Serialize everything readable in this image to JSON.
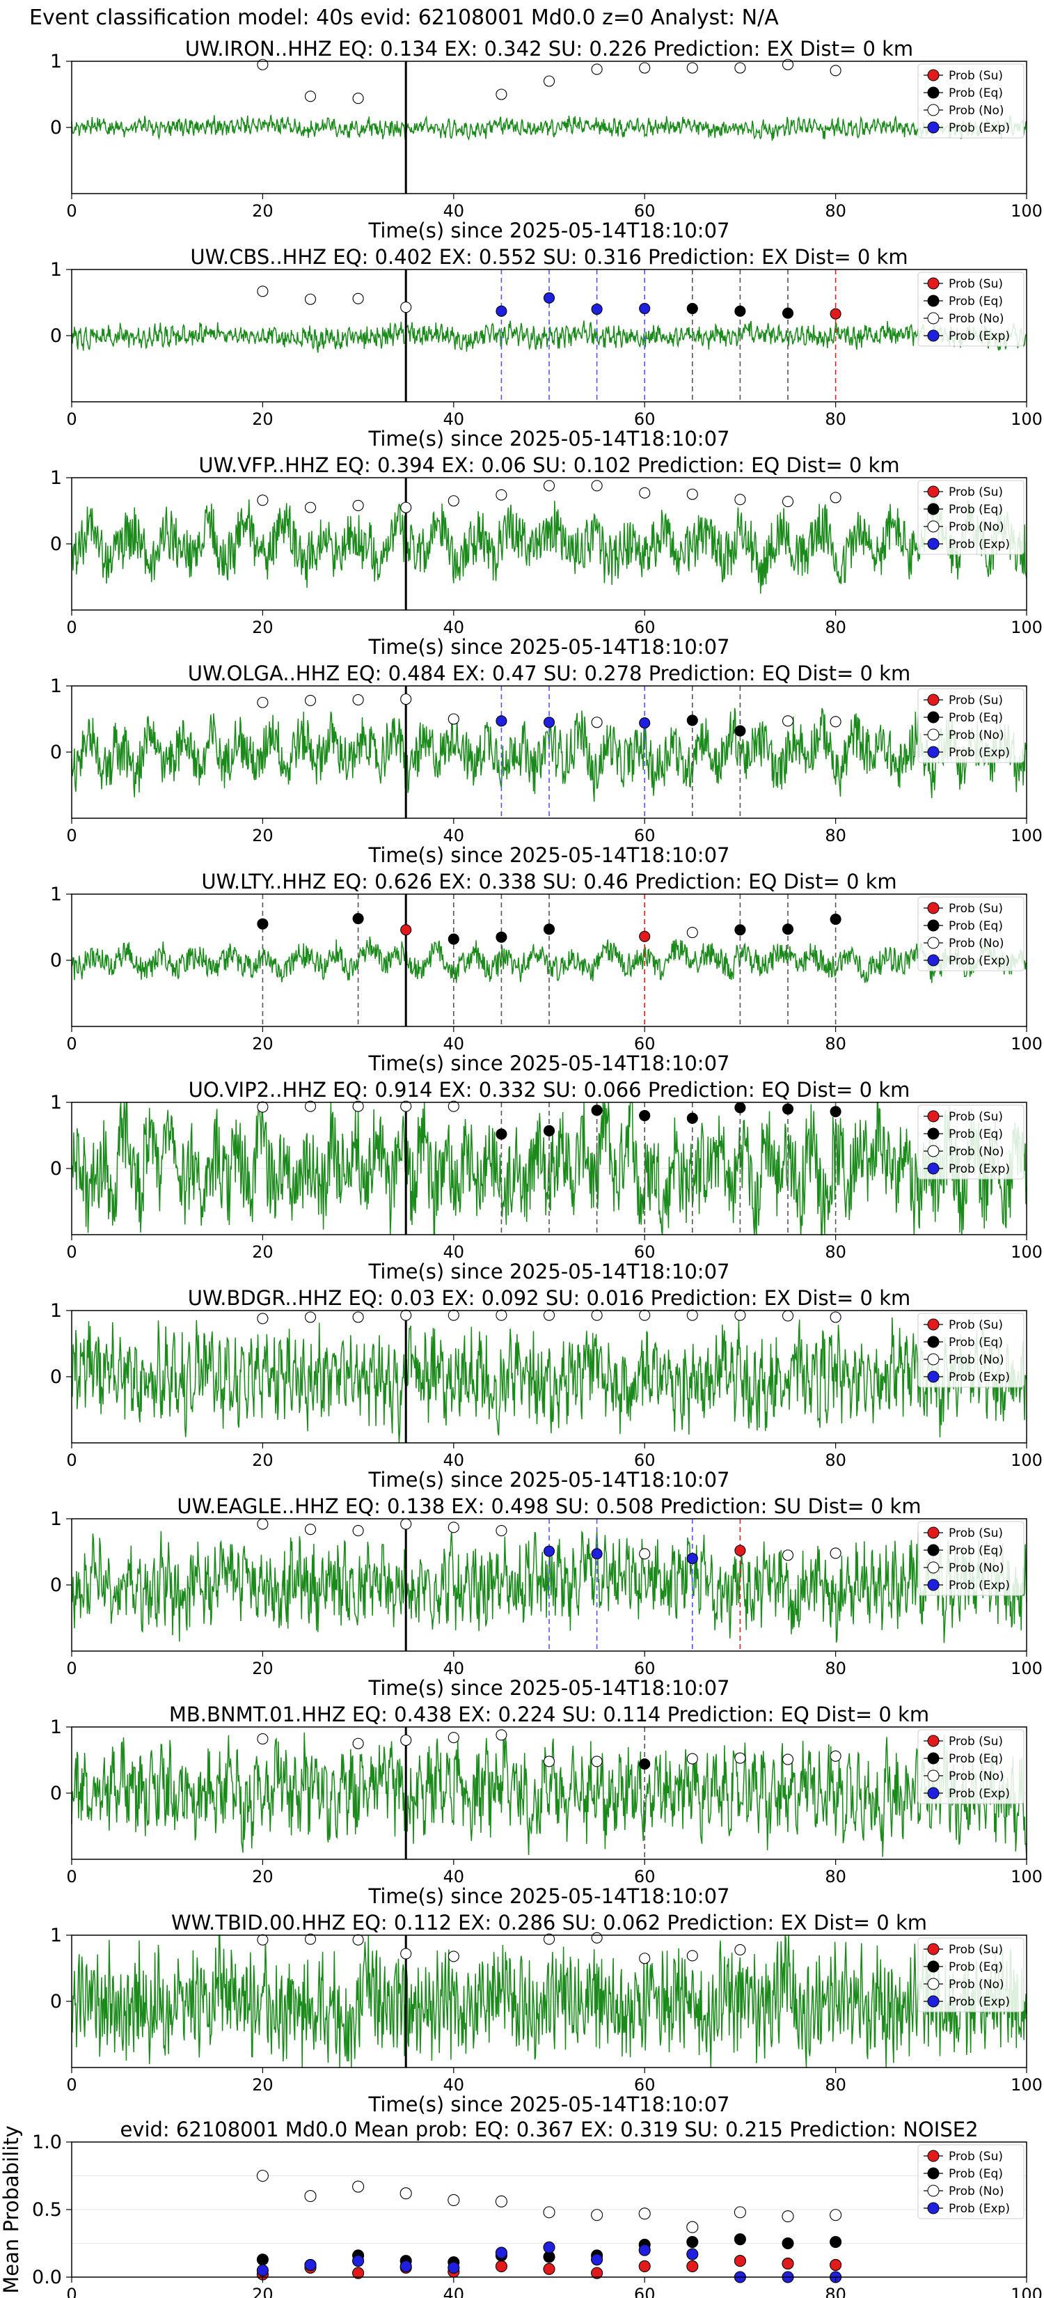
{
  "figure_title": "Event classification model: 40s evid: 62108001 Md0.0 z=0 Analyst: N/A",
  "legend": [
    {
      "label": "Prob (Su)",
      "fill": "#e31a1c"
    },
    {
      "label": "Prob (Eq)",
      "fill": "#000000"
    },
    {
      "label": "Prob (No)",
      "fill": "#ffffff"
    },
    {
      "label": "Prob (Exp)",
      "fill": "#1f1fe0"
    }
  ],
  "colors": {
    "trace": "#1a8a1a",
    "pick_line": "#000000",
    "su": "#e31a1c",
    "eq": "#000000",
    "no": "#ffffff",
    "exp": "#1f1fe0"
  },
  "chart_data": [
    {
      "type": "line",
      "title": "UW.IRON..HHZ   EQ: 0.134  EX: 0.342  SU: 0.226   Prediction: EX    Dist= 0 km",
      "xlabel": "Time(s) since 2025-05-14T18:10:07",
      "xlim": [
        0,
        100
      ],
      "ylim": [
        -1,
        1
      ],
      "xticks": [
        0,
        20,
        40,
        60,
        80,
        100
      ],
      "yticks": [
        0,
        1
      ],
      "pick_time": 35,
      "noise": 0.12,
      "period": 3,
      "seed": 3,
      "points": [
        [
          20,
          "no",
          0.95
        ],
        [
          25,
          "no",
          0.47
        ],
        [
          30,
          "no",
          0.44
        ],
        [
          45,
          "no",
          0.5
        ],
        [
          50,
          "no",
          0.7
        ],
        [
          55,
          "no",
          0.88
        ],
        [
          60,
          "no",
          0.9
        ],
        [
          65,
          "no",
          0.9
        ],
        [
          70,
          "no",
          0.9
        ],
        [
          75,
          "no",
          0.95
        ],
        [
          80,
          "no",
          0.86
        ]
      ]
    },
    {
      "type": "line",
      "title": "UW.CBS..HHZ   EQ: 0.402  EX: 0.552  SU: 0.316   Prediction: EX    Dist= 0 km",
      "xlabel": "Time(s) since 2025-05-14T18:10:07",
      "xlim": [
        0,
        100
      ],
      "ylim": [
        -1,
        1
      ],
      "xticks": [
        0,
        20,
        40,
        60,
        80,
        100
      ],
      "yticks": [
        0,
        1
      ],
      "pick_time": 35,
      "noise": 0.15,
      "period": 3,
      "seed": 11,
      "points": [
        [
          20,
          "no",
          0.67
        ],
        [
          25,
          "no",
          0.55
        ],
        [
          30,
          "no",
          0.56
        ],
        [
          35,
          "no",
          0.43
        ],
        [
          45,
          "exp",
          0.37
        ],
        [
          50,
          "exp",
          0.57
        ],
        [
          55,
          "exp",
          0.4
        ],
        [
          60,
          "exp",
          0.41
        ],
        [
          65,
          "eq",
          0.41
        ],
        [
          70,
          "eq",
          0.37
        ],
        [
          75,
          "eq",
          0.34
        ],
        [
          80,
          "su",
          0.33
        ]
      ]
    },
    {
      "type": "line",
      "title": "UW.VFP..HHZ   EQ: 0.394  EX: 0.06  SU: 0.102   Prediction: EQ    Dist= 0 km",
      "xlabel": "Time(s) since 2025-05-14T18:10:07",
      "xlim": [
        0,
        100
      ],
      "ylim": [
        -1,
        1
      ],
      "xticks": [
        0,
        20,
        40,
        60,
        80,
        100
      ],
      "yticks": [
        0,
        1
      ],
      "pick_time": 35,
      "noise": 0.45,
      "period": 20,
      "seed": 17,
      "points": [
        [
          20,
          "no",
          0.66
        ],
        [
          25,
          "no",
          0.55
        ],
        [
          30,
          "no",
          0.58
        ],
        [
          35,
          "no",
          0.55
        ],
        [
          40,
          "no",
          0.65
        ],
        [
          45,
          "no",
          0.74
        ],
        [
          50,
          "no",
          0.88
        ],
        [
          55,
          "no",
          0.88
        ],
        [
          60,
          "no",
          0.77
        ],
        [
          65,
          "no",
          0.75
        ],
        [
          70,
          "no",
          0.67
        ],
        [
          75,
          "no",
          0.64
        ],
        [
          80,
          "no",
          0.7
        ]
      ]
    },
    {
      "type": "line",
      "title": "UW.OLGA..HHZ   EQ: 0.484  EX: 0.47  SU: 0.278   Prediction: EQ    Dist= 0 km",
      "xlabel": "Time(s) since 2025-05-14T18:10:07",
      "xlim": [
        0,
        100
      ],
      "ylim": [
        -1,
        1
      ],
      "xticks": [
        0,
        20,
        40,
        60,
        80,
        100
      ],
      "yticks": [
        0,
        1
      ],
      "pick_time": 35,
      "noise": 0.45,
      "period": 16,
      "seed": 23,
      "points": [
        [
          20,
          "no",
          0.75
        ],
        [
          25,
          "no",
          0.78
        ],
        [
          30,
          "no",
          0.79
        ],
        [
          35,
          "no",
          0.8
        ],
        [
          40,
          "no",
          0.5
        ],
        [
          45,
          "exp",
          0.47
        ],
        [
          50,
          "exp",
          0.45
        ],
        [
          55,
          "no",
          0.45
        ],
        [
          60,
          "exp",
          0.44
        ],
        [
          65,
          "eq",
          0.48
        ],
        [
          70,
          "eq",
          0.32
        ],
        [
          75,
          "no",
          0.47
        ],
        [
          80,
          "no",
          0.46
        ]
      ]
    },
    {
      "type": "line",
      "title": "UW.LTY..HHZ   EQ: 0.626  EX: 0.338  SU: 0.46   Prediction: EQ    Dist= 0 km",
      "xlabel": "Time(s) since 2025-05-14T18:10:07",
      "xlim": [
        0,
        100
      ],
      "ylim": [
        -1,
        1
      ],
      "xticks": [
        0,
        20,
        40,
        60,
        80,
        100
      ],
      "yticks": [
        0,
        1
      ],
      "pick_time": 35,
      "noise": 0.22,
      "period": 18,
      "seed": 29,
      "points": [
        [
          20,
          "eq",
          0.55
        ],
        [
          30,
          "eq",
          0.63
        ],
        [
          35,
          "su",
          0.46
        ],
        [
          40,
          "eq",
          0.32
        ],
        [
          45,
          "eq",
          0.35
        ],
        [
          50,
          "eq",
          0.47
        ],
        [
          60,
          "su",
          0.36
        ],
        [
          65,
          "no",
          0.42
        ],
        [
          70,
          "eq",
          0.46
        ],
        [
          75,
          "eq",
          0.47
        ],
        [
          80,
          "eq",
          0.62
        ]
      ]
    },
    {
      "type": "line",
      "title": "UO.VIP2..HHZ   EQ: 0.914  EX: 0.332  SU: 0.066   Prediction: EQ    Dist= 0 km",
      "xlabel": "Time(s) since 2025-05-14T18:10:07",
      "xlim": [
        0,
        100
      ],
      "ylim": [
        -1,
        1
      ],
      "xticks": [
        0,
        20,
        40,
        60,
        80,
        100
      ],
      "yticks": [
        0,
        1
      ],
      "pick_time": 35,
      "noise": 0.75,
      "period": 12,
      "seed": 31,
      "points": [
        [
          20,
          "no",
          0.93
        ],
        [
          25,
          "no",
          0.94
        ],
        [
          30,
          "no",
          0.94
        ],
        [
          35,
          "no",
          0.94
        ],
        [
          40,
          "no",
          0.94
        ],
        [
          45,
          "eq",
          0.52
        ],
        [
          50,
          "eq",
          0.57
        ],
        [
          55,
          "eq",
          0.88
        ],
        [
          60,
          "eq",
          0.8
        ],
        [
          65,
          "eq",
          0.76
        ],
        [
          70,
          "eq",
          0.92
        ],
        [
          75,
          "eq",
          0.9
        ],
        [
          80,
          "eq",
          0.86
        ]
      ]
    },
    {
      "type": "line",
      "title": "UW.BDGR..HHZ   EQ: 0.03  EX: 0.092  SU: 0.016   Prediction: EX    Dist= 0 km",
      "xlabel": "Time(s) since 2025-05-14T18:10:07",
      "xlim": [
        0,
        100
      ],
      "ylim": [
        -1,
        1
      ],
      "xticks": [
        0,
        20,
        40,
        60,
        80,
        100
      ],
      "yticks": [
        0,
        1
      ],
      "pick_time": 35,
      "noise": 0.6,
      "period": 4,
      "seed": 37,
      "points": [
        [
          20,
          "no",
          0.88
        ],
        [
          25,
          "no",
          0.9
        ],
        [
          30,
          "no",
          0.9
        ],
        [
          35,
          "no",
          0.93
        ],
        [
          40,
          "no",
          0.93
        ],
        [
          45,
          "no",
          0.93
        ],
        [
          50,
          "no",
          0.93
        ],
        [
          55,
          "no",
          0.93
        ],
        [
          60,
          "no",
          0.93
        ],
        [
          65,
          "no",
          0.93
        ],
        [
          70,
          "no",
          0.93
        ],
        [
          75,
          "no",
          0.92
        ],
        [
          80,
          "no",
          0.9
        ]
      ]
    },
    {
      "type": "line",
      "title": "UW.EAGLE..HHZ   EQ: 0.138  EX: 0.498  SU: 0.508   Prediction: SU    Dist= 0 km",
      "xlabel": "Time(s) since 2025-05-14T18:10:07",
      "xlim": [
        0,
        100
      ],
      "ylim": [
        -1,
        1
      ],
      "xticks": [
        0,
        20,
        40,
        60,
        80,
        100
      ],
      "yticks": [
        0,
        1
      ],
      "pick_time": 35,
      "noise": 0.55,
      "period": 4,
      "seed": 41,
      "points": [
        [
          20,
          "no",
          0.92
        ],
        [
          25,
          "no",
          0.84
        ],
        [
          30,
          "no",
          0.82
        ],
        [
          35,
          "no",
          0.92
        ],
        [
          40,
          "no",
          0.87
        ],
        [
          45,
          "no",
          0.82
        ],
        [
          50,
          "exp",
          0.51
        ],
        [
          55,
          "exp",
          0.47
        ],
        [
          60,
          "no",
          0.47
        ],
        [
          65,
          "exp",
          0.4
        ],
        [
          70,
          "su",
          0.52
        ],
        [
          75,
          "no",
          0.45
        ],
        [
          80,
          "no",
          0.48
        ]
      ]
    },
    {
      "type": "line",
      "title": "MB.BNMT.01.HHZ   EQ: 0.438  EX: 0.224  SU: 0.114   Prediction: EQ    Dist= 0 km",
      "xlabel": "Time(s) since 2025-05-14T18:10:07",
      "xlim": [
        0,
        100
      ],
      "ylim": [
        -1,
        1
      ],
      "xticks": [
        0,
        20,
        40,
        60,
        80,
        100
      ],
      "yticks": [
        0,
        1
      ],
      "pick_time": 35,
      "noise": 0.6,
      "period": 5,
      "seed": 43,
      "points": [
        [
          20,
          "no",
          0.82
        ],
        [
          30,
          "no",
          0.75
        ],
        [
          35,
          "no",
          0.8
        ],
        [
          40,
          "no",
          0.84
        ],
        [
          45,
          "no",
          0.88
        ],
        [
          50,
          "no",
          0.48
        ],
        [
          55,
          "no",
          0.48
        ],
        [
          60,
          "eq",
          0.44
        ],
        [
          65,
          "no",
          0.52
        ],
        [
          70,
          "no",
          0.53
        ],
        [
          75,
          "no",
          0.51
        ],
        [
          80,
          "no",
          0.56
        ]
      ]
    },
    {
      "type": "line",
      "title": "WW.TBID.00.HHZ   EQ: 0.112  EX: 0.286  SU: 0.062   Prediction: EX    Dist= 0 km",
      "xlabel": "Time(s) since 2025-05-14T18:10:07",
      "xlim": [
        0,
        100
      ],
      "ylim": [
        -1,
        1
      ],
      "xticks": [
        0,
        20,
        40,
        60,
        80,
        100
      ],
      "yticks": [
        0,
        1
      ],
      "pick_time": 35,
      "noise": 0.7,
      "period": 2,
      "seed": 47,
      "points": [
        [
          20,
          "no",
          0.93
        ],
        [
          25,
          "no",
          0.94
        ],
        [
          30,
          "no",
          0.93
        ],
        [
          35,
          "no",
          0.72
        ],
        [
          40,
          "no",
          0.68
        ],
        [
          50,
          "no",
          0.94
        ],
        [
          55,
          "no",
          0.96
        ],
        [
          60,
          "no",
          0.65
        ],
        [
          65,
          "no",
          0.69
        ],
        [
          70,
          "no",
          0.78
        ]
      ]
    },
    {
      "type": "scatter",
      "title": "evid: 62108001  Md0.0   Mean prob:   EQ: 0.367  EX: 0.319  SU: 0.215   Prediction: NOISE2",
      "ylabel": "Mean Probability",
      "xlim": [
        0,
        100
      ],
      "ylim": [
        0,
        1
      ],
      "xticks": [
        0,
        20,
        40,
        60,
        80,
        100
      ],
      "yticks": [
        0,
        0.5,
        1
      ],
      "ytick_labels": [
        "0.0",
        "0.5",
        "1.0"
      ],
      "series": [
        {
          "name": "Prob (Su)",
          "kind": "su",
          "x": [
            20,
            25,
            30,
            35,
            40,
            45,
            50,
            55,
            60,
            65,
            70,
            75,
            80
          ],
          "y": [
            0.02,
            0.07,
            0.03,
            0.07,
            0.04,
            0.08,
            0.06,
            0.03,
            0.08,
            0.08,
            0.12,
            0.1,
            0.09
          ]
        },
        {
          "name": "Prob (Eq)",
          "kind": "eq",
          "x": [
            20,
            25,
            30,
            35,
            40,
            45,
            50,
            55,
            60,
            65,
            70,
            75,
            80
          ],
          "y": [
            0.13,
            0.09,
            0.16,
            0.12,
            0.11,
            0.16,
            0.15,
            0.16,
            0.24,
            0.26,
            0.28,
            0.25,
            0.26
          ]
        },
        {
          "name": "Prob (No)",
          "kind": "no",
          "x": [
            20,
            25,
            30,
            35,
            40,
            45,
            50,
            55,
            60,
            65,
            70,
            75,
            80
          ],
          "y": [
            0.75,
            0.6,
            0.67,
            0.62,
            0.57,
            0.56,
            0.48,
            0.46,
            0.47,
            0.37,
            0.48,
            0.45,
            0.46
          ]
        },
        {
          "name": "Prob (Exp)",
          "kind": "exp",
          "x": [
            20,
            25,
            30,
            35,
            40,
            45,
            50,
            55,
            60,
            65,
            70,
            75,
            80
          ],
          "y": [
            0.05,
            0.09,
            0.12,
            0.08,
            0.07,
            0.18,
            0.22,
            0.13,
            0.2,
            0.17,
            0.0,
            0.0,
            0.0
          ]
        }
      ]
    }
  ]
}
